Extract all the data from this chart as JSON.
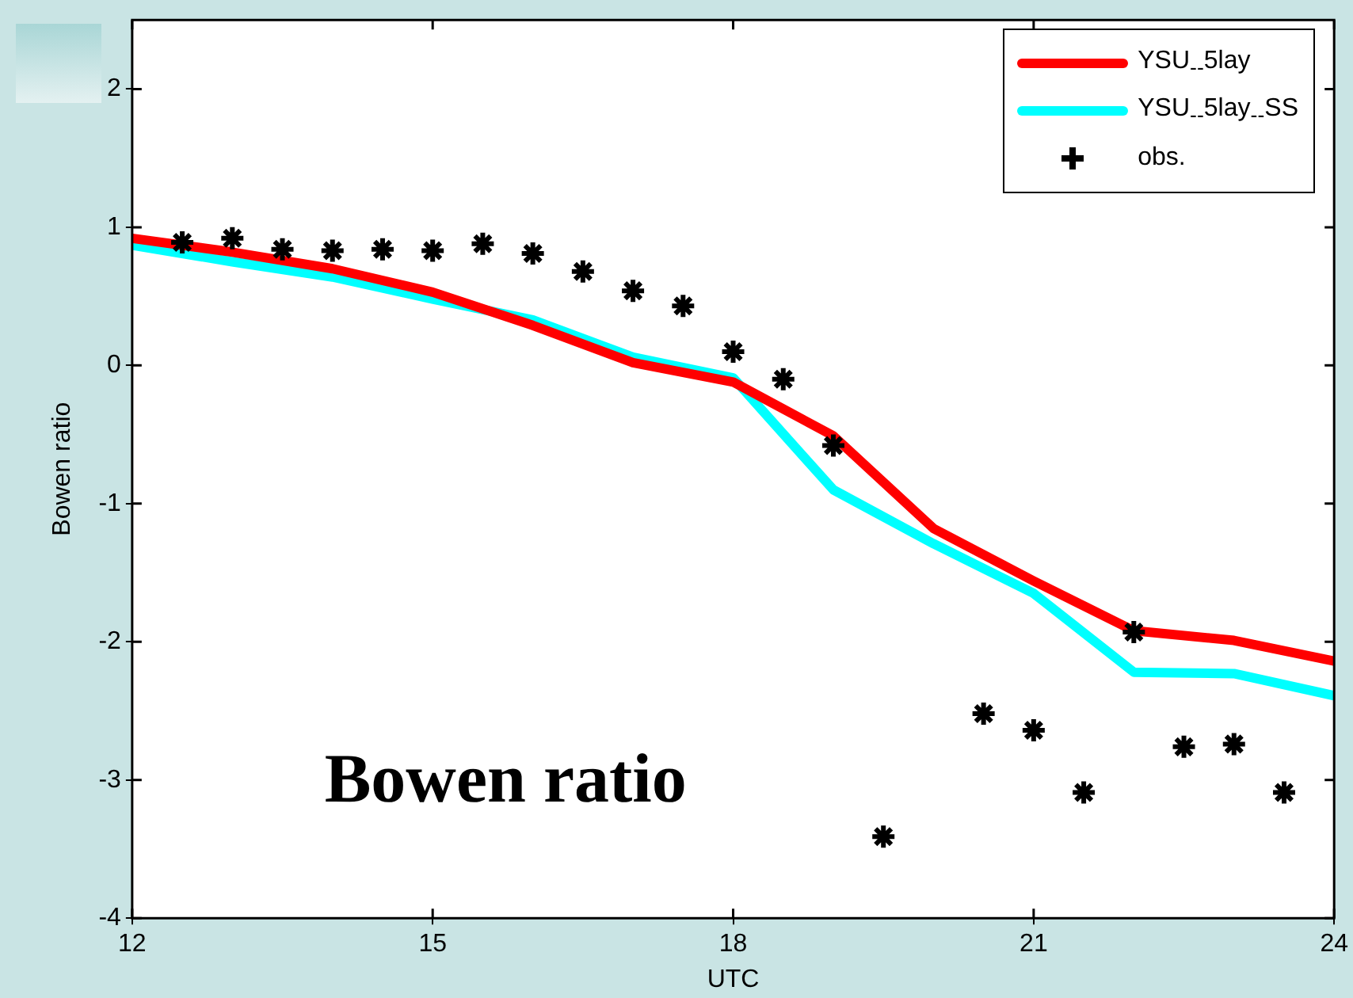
{
  "chart_data": {
    "type": "line",
    "xlabel": "UTC",
    "ylabel": "Bowen ratio",
    "annotations": [
      "Bowen ratio"
    ],
    "xlim": [
      12,
      24
    ],
    "xticks": [
      12,
      15,
      18,
      21,
      24
    ],
    "ylim": [
      -4,
      2.5
    ],
    "yticks": [
      -4,
      -3,
      -2,
      -1,
      0,
      1,
      2
    ],
    "grid": false,
    "legend": "top right",
    "marker": "none",
    "line_style": "solid",
    "series": [
      {
        "name": "YSU$_{--}$5lay",
        "color": "#ff0000",
        "x": [
          12,
          13,
          14,
          15,
          16,
          17,
          18,
          19,
          20,
          21,
          22,
          23,
          24
        ],
        "values": [
          0.92,
          0.82,
          0.7,
          0.53,
          0.29,
          0.02,
          -0.12,
          -0.51,
          -1.18,
          -1.56,
          -1.92,
          -1.99,
          -2.14
        ]
      },
      {
        "name": "YSU$_{--}$5lay$_{--}$SS",
        "color": "#00ffff",
        "x": [
          12,
          13,
          14,
          15,
          16,
          17,
          18,
          19,
          20,
          21,
          22,
          23,
          24
        ],
        "values": [
          0.87,
          0.75,
          0.64,
          0.48,
          0.33,
          0.06,
          -0.09,
          -0.9,
          -1.29,
          -1.65,
          -2.22,
          -2.23,
          -2.39
        ]
      },
      {
        "name": "obs.",
        "color": "#000000",
        "type": "scatter",
        "marker": "cross",
        "x": [
          12.5,
          13,
          13.5,
          14,
          14.5,
          15,
          15.5,
          16,
          16.5,
          17,
          17.5,
          18,
          18.5,
          19,
          19.5,
          20,
          20.5,
          21,
          21.5,
          22,
          22.5,
          23,
          23.5
        ],
        "values": [
          0.89,
          0.92,
          0.84,
          0.83,
          0.84,
          0.83,
          0.88,
          0.81,
          0.68,
          0.54,
          0.43,
          0.1,
          -0.1,
          -0.58,
          -3.41,
          null,
          -2.52,
          -2.64,
          -3.09,
          -1.93,
          -2.76,
          -2.74,
          -3.09
        ]
      }
    ]
  }
}
